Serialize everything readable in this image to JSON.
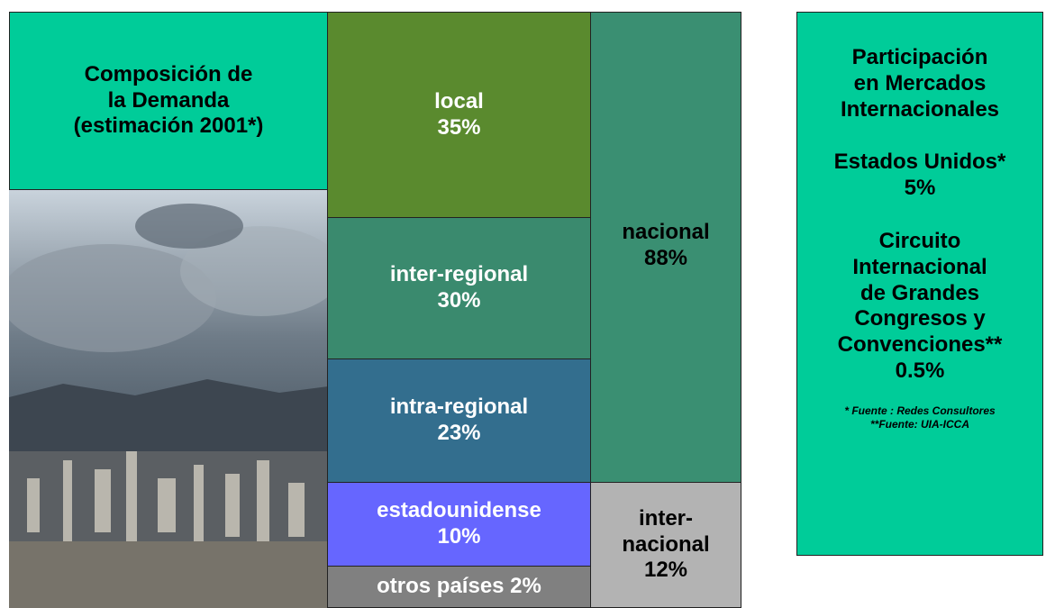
{
  "title_box": {
    "lines": [
      "Composición de",
      "la Demanda",
      "(estimación 2001*)"
    ]
  },
  "segments": [
    {
      "lines": [
        "local",
        "35%"
      ]
    },
    {
      "lines": [
        "inter-regional",
        "30%"
      ]
    },
    {
      "lines": [
        "intra-regional",
        "23%"
      ]
    },
    {
      "lines": [
        "estadounidense",
        "10%"
      ]
    },
    {
      "lines": [
        "otros países 2%"
      ]
    }
  ],
  "groups": [
    {
      "lines": [
        "nacional",
        "88%"
      ]
    },
    {
      "lines": [
        "inter-",
        "nacional",
        "12%"
      ]
    }
  ],
  "panel": {
    "heading": [
      "Participación",
      "en Mercados",
      "Internacionales"
    ],
    "item1": [
      "Estados Unidos*",
      "5%"
    ],
    "item2": [
      "Circuito",
      "Internacional",
      "de Grandes",
      "Congresos y",
      "Convenciones**",
      "0.5%"
    ],
    "footnotes": [
      "* Fuente : Redes Consultores",
      "**Fuente: UIA-ICCA"
    ]
  }
}
